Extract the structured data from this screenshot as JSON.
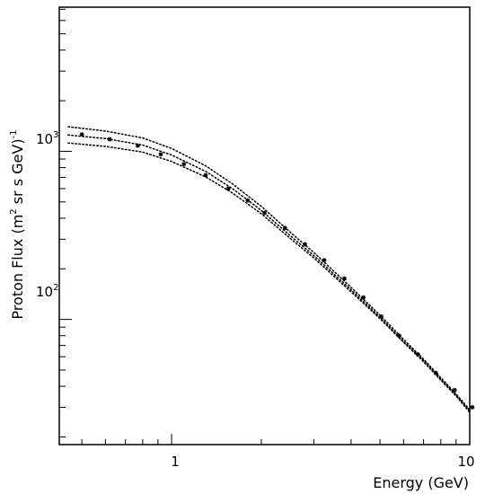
{
  "chart_data": {
    "type": "line",
    "title": "",
    "xlabel": "Energy (GeV)",
    "ylabel_parts": [
      "Proton Flux (m",
      "2",
      " sr s GeV)",
      "-1"
    ],
    "xscale": "log",
    "yscale": "log",
    "xlim": [
      0.42,
      10
    ],
    "ylim": [
      18,
      7200
    ],
    "grid": false,
    "x_ticks": [
      {
        "value": 1,
        "label": "1"
      },
      {
        "value": 10,
        "label": "10"
      }
    ],
    "y_ticks": [
      {
        "value": 100,
        "label": "10",
        "exp": "2"
      },
      {
        "value": 1000,
        "label": "10",
        "exp": "3"
      }
    ],
    "colors": {
      "line": "#000000",
      "points": "#000000",
      "axes": "#000000"
    },
    "series": [
      {
        "style": "dotted",
        "x": [
          0.45,
          0.6,
          0.8,
          1.0,
          1.3,
          1.6,
          2.0,
          2.5,
          3.0,
          4.0,
          5.0,
          6.0,
          7.0,
          8.0,
          9.0,
          10.0
        ],
        "y": [
          1400,
          1320,
          1200,
          1040,
          820,
          640,
          470,
          330,
          250,
          155,
          106,
          76,
          58,
          45,
          36,
          29
        ]
      },
      {
        "style": "dotted",
        "x": [
          0.45,
          0.6,
          0.8,
          1.0,
          1.3,
          1.6,
          2.0,
          2.5,
          3.0,
          4.0,
          5.0,
          6.0,
          7.0,
          8.0,
          9.0,
          10.0
        ],
        "y": [
          1250,
          1190,
          1090,
          950,
          760,
          600,
          445,
          315,
          240,
          150,
          103,
          74,
          57,
          44,
          35.5,
          28.5
        ]
      },
      {
        "style": "dotted",
        "x": [
          0.45,
          0.6,
          0.8,
          1.0,
          1.3,
          1.6,
          2.0,
          2.5,
          3.0,
          4.0,
          5.0,
          6.0,
          7.0,
          8.0,
          9.0,
          10.0
        ],
        "y": [
          1120,
          1070,
          990,
          870,
          705,
          565,
          425,
          303,
          232,
          146,
          101,
          73,
          56,
          43.5,
          35,
          28
        ]
      },
      {
        "style": "markers",
        "x": [
          0.5,
          0.62,
          0.77,
          0.92,
          1.1,
          1.3,
          1.55,
          1.8,
          2.05,
          2.4,
          2.8,
          3.25,
          3.8,
          4.4,
          5.05,
          5.8,
          6.7,
          7.7,
          8.9,
          10.2
        ],
        "y": [
          1260,
          1180,
          1080,
          960,
          840,
          720,
          600,
          510,
          430,
          350,
          280,
          225,
          175,
          135,
          104,
          80,
          62,
          48,
          38,
          30
        ]
      }
    ]
  }
}
